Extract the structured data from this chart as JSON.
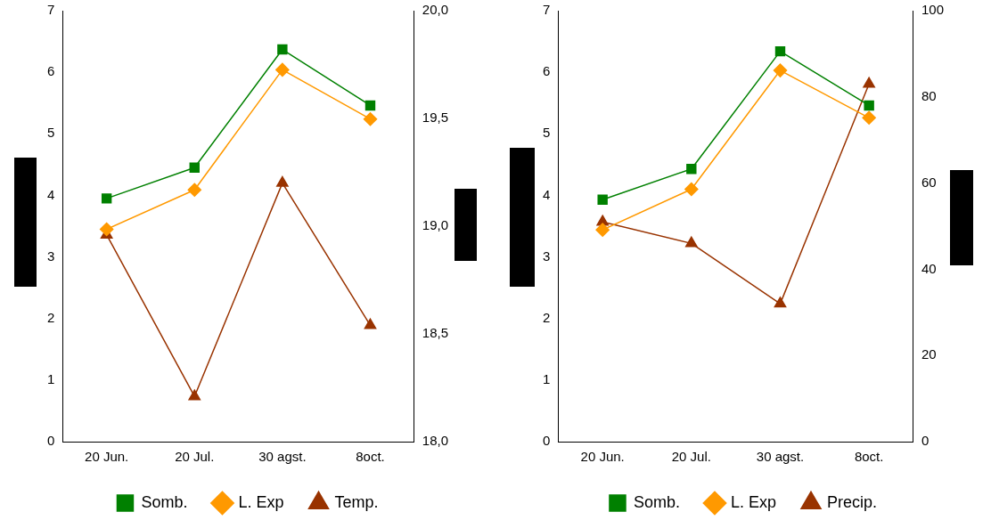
{
  "chart_data": [
    {
      "type": "line",
      "categories": [
        "20 Jun.",
        "20 Jul.",
        "30 agst.",
        "8oct."
      ],
      "series": [
        {
          "name": "Somb.",
          "color": "#008000",
          "marker": "square",
          "values": [
            3.95,
            4.45,
            6.37,
            5.46
          ]
        },
        {
          "name": "L. Exp",
          "color": "#ff9900",
          "marker": "diamond",
          "values": [
            3.45,
            4.09,
            6.04,
            5.24
          ]
        },
        {
          "name": "Temp.",
          "color": "#993300",
          "marker": "triangle",
          "axis": "y2",
          "values": [
            18.96,
            18.21,
            19.2,
            18.54
          ]
        }
      ],
      "ylim": [
        0,
        7
      ],
      "yticks": [
        0,
        1,
        2,
        3,
        4,
        5,
        6,
        7
      ],
      "y2lim": [
        18,
        20
      ],
      "y2ticks": [
        {
          "value": 18,
          "label": "18,0"
        },
        {
          "value": 18.5,
          "label": "18,5"
        },
        {
          "value": 19,
          "label": "19,0"
        },
        {
          "value": 19.5,
          "label": "19,5"
        },
        {
          "value": 20,
          "label": "20,0"
        }
      ],
      "grid": false,
      "legend": "bottom"
    },
    {
      "type": "line",
      "categories": [
        "20 Jun.",
        "20 Jul.",
        "30 agst.",
        "8oct."
      ],
      "series": [
        {
          "name": "Somb.",
          "color": "#008000",
          "marker": "square",
          "values": [
            3.93,
            4.43,
            6.34,
            5.46
          ]
        },
        {
          "name": "L. Exp",
          "color": "#ff9900",
          "marker": "diamond",
          "values": [
            3.44,
            4.1,
            6.03,
            5.26
          ]
        },
        {
          "name": "Precip.",
          "color": "#993300",
          "marker": "triangle",
          "axis": "y2",
          "values": [
            51,
            46,
            32,
            83
          ]
        }
      ],
      "ylim": [
        0,
        7
      ],
      "yticks": [
        0,
        1,
        2,
        3,
        4,
        5,
        6,
        7
      ],
      "y2lim": [
        0,
        100
      ],
      "y2ticks": [
        0,
        20,
        40,
        60,
        80,
        100
      ],
      "grid": false,
      "legend": "bottom"
    }
  ]
}
